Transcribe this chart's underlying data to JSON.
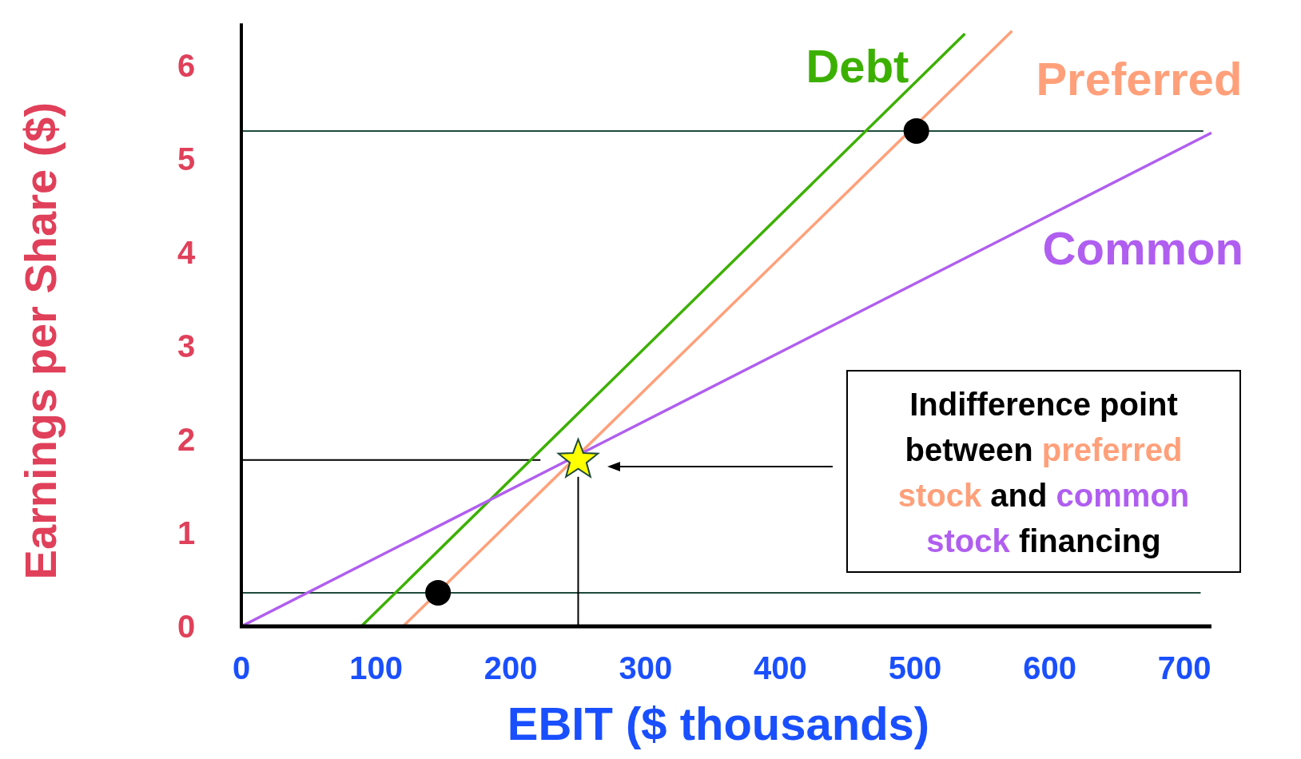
{
  "chart_data": {
    "type": "line",
    "xlabel": "EBIT ($ thousands)",
    "ylabel": "Earnings per Share ($)",
    "xlim": [
      0,
      720
    ],
    "ylim": [
      0,
      6.45
    ],
    "xticks": [
      0,
      100,
      200,
      300,
      400,
      500,
      600,
      700
    ],
    "yticks": [
      0,
      1,
      2,
      3,
      4,
      5,
      6
    ],
    "grid": false,
    "series": [
      {
        "color": "#1f4a3c",
        "x": [
          0,
          714
        ],
        "values": [
          5.3,
          5.3
        ]
      },
      {
        "color": "#1f4a3c",
        "x": [
          0,
          712
        ],
        "values": [
          0.36,
          0.36
        ]
      },
      {
        "color": "#000000",
        "x": [
          0,
          222
        ],
        "values": [
          1.78,
          1.78
        ]
      },
      {
        "color": "#000000",
        "x": [
          250,
          250
        ],
        "values": [
          0,
          1.6
        ]
      },
      {
        "name": "Debt",
        "color": "#3cb000",
        "x": [
          89,
          537
        ],
        "values": [
          0,
          6.34
        ]
      },
      {
        "name": "Preferred",
        "color": "#ffa07a",
        "x": [
          120,
          572
        ],
        "values": [
          0,
          6.37
        ]
      },
      {
        "name": "Common",
        "color": "#b05ef0",
        "x": [
          0,
          720
        ],
        "values": [
          0,
          5.28
        ]
      },
      {
        "type": "scatter",
        "marker": "circle",
        "color": "#000000",
        "x": [
          146,
          501
        ],
        "values": [
          0.36,
          5.3
        ]
      },
      {
        "type": "scatter",
        "marker": "star",
        "color": "#ffff00",
        "x": [
          250
        ],
        "values": [
          1.78
        ]
      }
    ],
    "annotations": [
      "Indifference point between preferred stock and common stock financing"
    ]
  }
}
